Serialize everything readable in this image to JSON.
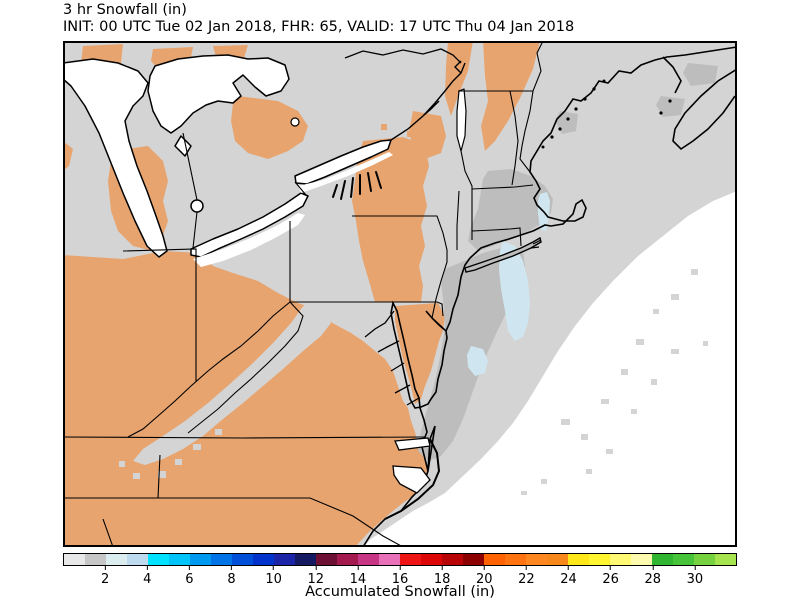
{
  "header": {
    "line1": "3 hr Snowfall (in)",
    "line2": "INIT: 00 UTC Tue 02 Jan 2018, FHR: 65, VALID: 17 UTC Thu 04 Jan 2018"
  },
  "colorbar": {
    "label": "Accumulated Snowfall (in)",
    "min": 0,
    "max": 32,
    "ticks": [
      2,
      4,
      6,
      8,
      10,
      12,
      14,
      16,
      18,
      20,
      22,
      24,
      26,
      28,
      30
    ],
    "colors": [
      "#e8e8e8",
      "#c6c6c6",
      "#dcedf0",
      "#bedaee",
      "#00e2ff",
      "#00c3f8",
      "#0099f0",
      "#0073e6",
      "#004fd9",
      "#0032cc",
      "#1c24a8",
      "#151a61",
      "#6e1034",
      "#a31a4e",
      "#c73585",
      "#e770b8",
      "#ef1515",
      "#dc0606",
      "#b80404",
      "#8c0000",
      "#ff6200",
      "#ff7410",
      "#ff8721",
      "#f6871a",
      "#ffe81a",
      "#fff530",
      "#fff973",
      "#fdfbb0",
      "#2fb52f",
      "#46c338",
      "#76d23e",
      "#a5e44e"
    ]
  },
  "map": {
    "colors": {
      "land_no_snow": "#e7a46f",
      "snow_trace": "#d4d4d4",
      "snow_1_2in": "#bdbdbd",
      "snow_2_3in": "#cfe6f0",
      "water": "#ffffff",
      "line": "#000000"
    }
  }
}
